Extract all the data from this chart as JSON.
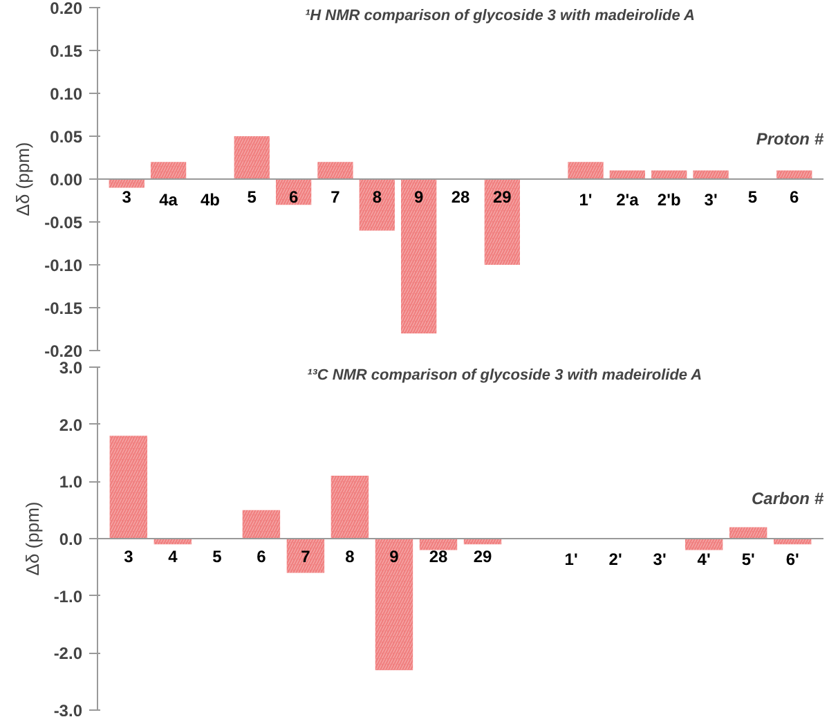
{
  "chart_data": [
    {
      "type": "bar",
      "title": "¹H NMR comparison of  glycoside 3 with madeirolide A",
      "xlabel": "Proton #",
      "ylabel": "Δδ (ppm)",
      "categories": [
        "3",
        "4a",
        "4b",
        "5",
        "6",
        "7",
        "8",
        "9",
        "28",
        "29",
        null,
        "1'",
        "2'a",
        "2'b",
        "3'",
        "5",
        "6"
      ],
      "values": [
        -0.01,
        0.02,
        0,
        0.05,
        -0.03,
        0.02,
        -0.06,
        -0.18,
        0,
        -0.1,
        null,
        0.02,
        0.01,
        0.01,
        0.01,
        0,
        0.01
      ],
      "color": "#f08080",
      "ylim": [
        -0.2,
        0.2
      ],
      "yticks": [
        {
          "value": -0.2,
          "label": "-0.20"
        },
        {
          "value": -0.15,
          "label": "-0.15"
        },
        {
          "value": -0.1,
          "label": "-0.10"
        },
        {
          "value": -0.05,
          "label": "-0.05"
        },
        {
          "value": 0,
          "label": "0.00"
        },
        {
          "value": 0.05,
          "label": "0.05"
        },
        {
          "value": 0.1,
          "label": "0.10"
        },
        {
          "value": 0.15,
          "label": "0.15"
        },
        {
          "value": 0.2,
          "label": "0.20"
        }
      ],
      "grid": false
    },
    {
      "type": "bar",
      "title": "¹³C NMR comparison of glycoside 3 with madeirolide A",
      "xlabel": "Carbon #",
      "ylabel": "Δδ (ppm)",
      "categories": [
        "3",
        "4",
        "5",
        "6",
        "7",
        "8",
        "9",
        "28",
        "29",
        null,
        "1'",
        "2'",
        "3'",
        "4'",
        "5'",
        "6'"
      ],
      "values": [
        1.8,
        -0.1,
        0,
        0.5,
        -0.6,
        1.1,
        -2.3,
        -0.2,
        -0.1,
        null,
        0,
        0,
        0,
        -0.2,
        0.2,
        -0.1
      ],
      "color": "#f08080",
      "ylim": [
        -3.0,
        3.0
      ],
      "yticks": [
        {
          "value": -3,
          "label": "-3.0"
        },
        {
          "value": -2,
          "label": "-2.0"
        },
        {
          "value": -1,
          "label": "-1.0"
        },
        {
          "value": 0,
          "label": "0.0"
        },
        {
          "value": 1,
          "label": "1.0"
        },
        {
          "value": 2,
          "label": "2.0"
        },
        {
          "value": 3,
          "label": "3.0"
        }
      ],
      "grid": false
    }
  ]
}
